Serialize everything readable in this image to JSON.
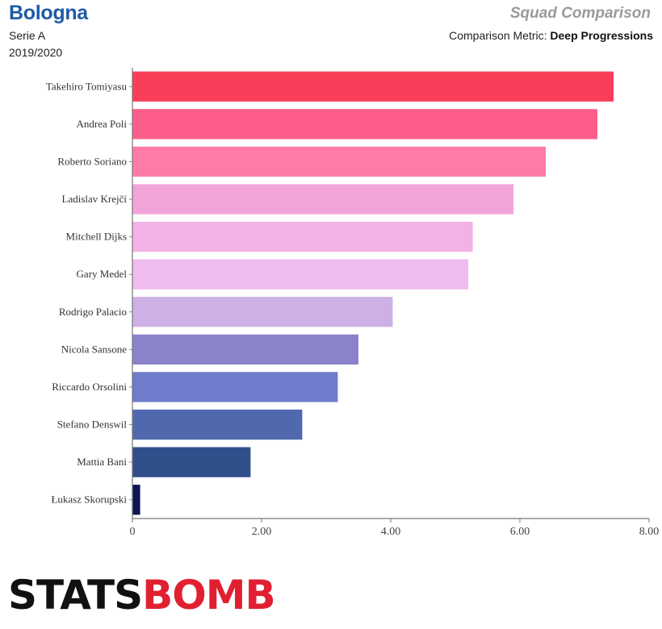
{
  "header": {
    "team": "Bologna",
    "league": "Serie A",
    "season": "2019/2020",
    "chart_kind": "Squad Comparison",
    "metric_prefix": "Comparison Metric:",
    "metric_name": "Deep Progressions"
  },
  "logo": {
    "text_part1": "STATS",
    "text_part2": "BOMB"
  },
  "chart_data": {
    "type": "bar",
    "orientation": "horizontal",
    "categories": [
      "Takehiro Tomiyasu",
      "Andrea Poli",
      "Roberto Soriano",
      "Ladislav Krejčí",
      "Mitchell Dijks",
      "Gary Medel",
      "Rodrigo Palacio",
      "Nicola Sansone",
      "Riccardo Orsolini",
      "Stefano Denswil",
      "Mattia Bani",
      "Łukasz Skorupski"
    ],
    "values": [
      7.45,
      7.2,
      6.4,
      5.9,
      5.27,
      5.2,
      4.03,
      3.5,
      3.18,
      2.63,
      1.83,
      0.12
    ],
    "colors": [
      "#fa3d58",
      "#fd5d8a",
      "#fd7aa9",
      "#f2a4d9",
      "#f2b2e6",
      "#f0bbee",
      "#cdb0e6",
      "#8a83cc",
      "#6f7bcb",
      "#5069ae",
      "#30508b",
      "#0f1552"
    ],
    "xlim": [
      0,
      8
    ],
    "xticks": [
      0,
      2,
      4,
      6,
      8
    ],
    "xtick_labels": [
      "0",
      "2.00",
      "4.00",
      "6.00",
      "8.00"
    ],
    "grid": false,
    "legend": "none"
  }
}
